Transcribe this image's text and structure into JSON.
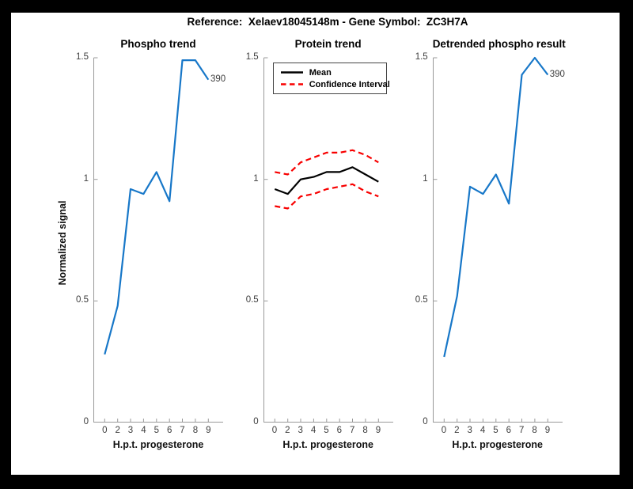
{
  "figure": {
    "title": "Reference:  Xelaev18045148m - Gene Symbol:  ZC3H7A",
    "background_color": "#000000",
    "canvas_color": "#ffffff",
    "accent_blue": "#1777C8",
    "accent_red": "#F80000"
  },
  "chart_data": [
    {
      "type": "line",
      "title": "Phospho trend",
      "xlabel": "H.p.t. progesterone",
      "ylabel": "Normalized signal",
      "x_tick_labels": [
        "0",
        "2",
        "3",
        "4",
        "5",
        "6",
        "7",
        "8",
        "9"
      ],
      "yticks": [
        0,
        0.5,
        1,
        1.5
      ],
      "ylim": [
        0,
        1.5
      ],
      "grid": false,
      "legend": null,
      "annotation": "390",
      "series": [
        {
          "name": "phospho-signal",
          "color": "#1777C8",
          "style": "solid",
          "width": 2.2,
          "values": [
            0.28,
            0.48,
            0.96,
            0.94,
            1.03,
            0.91,
            1.49,
            1.49,
            1.41
          ]
        }
      ]
    },
    {
      "type": "line",
      "title": "Protein trend",
      "xlabel": "H.p.t. progesterone",
      "ylabel": "",
      "x_tick_labels": [
        "0",
        "2",
        "3",
        "4",
        "5",
        "6",
        "7",
        "8",
        "9"
      ],
      "yticks": [
        0,
        0.5,
        1,
        1.5
      ],
      "ylim": [
        0,
        1.5
      ],
      "grid": false,
      "annotation": null,
      "legend": {
        "position": "top-left",
        "entries": [
          {
            "label": "Mean",
            "color": "#000000",
            "style": "solid"
          },
          {
            "label": "Confidence Interval",
            "color": "#F80000",
            "style": "dashed"
          }
        ]
      },
      "series": [
        {
          "name": "mean",
          "color": "#000000",
          "style": "solid",
          "width": 2.2,
          "values": [
            0.96,
            0.94,
            1.0,
            1.01,
            1.03,
            1.03,
            1.05,
            1.02,
            0.99
          ]
        },
        {
          "name": "confidence-interval-upper",
          "color": "#F80000",
          "style": "dashed",
          "width": 2.2,
          "values": [
            1.03,
            1.02,
            1.07,
            1.09,
            1.11,
            1.11,
            1.12,
            1.1,
            1.07
          ]
        },
        {
          "name": "confidence-interval-lower",
          "color": "#F80000",
          "style": "dashed",
          "width": 2.2,
          "values": [
            0.89,
            0.88,
            0.93,
            0.94,
            0.96,
            0.97,
            0.98,
            0.95,
            0.93
          ]
        }
      ]
    },
    {
      "type": "line",
      "title": "Detrended phospho result",
      "xlabel": "H.p.t. progesterone",
      "ylabel": "",
      "x_tick_labels": [
        "0",
        "2",
        "3",
        "4",
        "5",
        "6",
        "7",
        "8",
        "9"
      ],
      "yticks": [
        0,
        0.5,
        1,
        1.5
      ],
      "ylim": [
        0,
        1.5
      ],
      "grid": false,
      "legend": null,
      "annotation": "390",
      "series": [
        {
          "name": "detrended-phospho-signal",
          "color": "#1777C8",
          "style": "solid",
          "width": 2.2,
          "values": [
            0.27,
            0.52,
            0.97,
            0.94,
            1.02,
            0.9,
            1.43,
            1.5,
            1.43
          ]
        }
      ]
    }
  ]
}
